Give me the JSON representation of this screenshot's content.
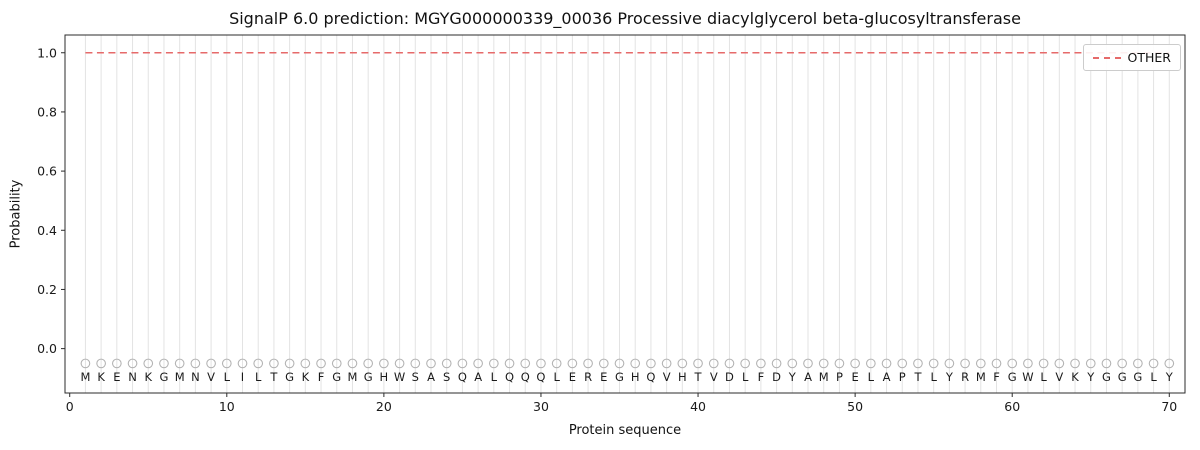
{
  "chart_data": {
    "type": "line",
    "title": "SignalP 6.0 prediction: MGYG000000339_00036 Processive diacylglycerol beta-glucosyltransferase",
    "xlabel": "Protein sequence",
    "ylabel": "Probability",
    "xlim": [
      -0.3,
      71
    ],
    "ylim": [
      -0.15,
      1.06
    ],
    "xticks": [
      0,
      10,
      20,
      30,
      40,
      50,
      60,
      70
    ],
    "yticks": [
      0.0,
      0.2,
      0.4,
      0.6,
      0.8,
      1.0
    ],
    "grid": {
      "vertical_per_residue": true,
      "color": "#e3e3e3"
    },
    "sequence": "MKENKGMNVLILTGKFGMGHWSASQALQQQLEREGHQVHTVDLFDYAMPELAPTLYRMFGWLVKYGGGLY",
    "marker": {
      "glyph": "open-circle",
      "y": -0.05,
      "color": "#b3b3b3"
    },
    "series": [
      {
        "name": "OTHER",
        "style": "dashed",
        "color": "#e66a6a",
        "value": 1.0,
        "x_start": 1,
        "x_end": 70
      }
    ],
    "legend": {
      "position": "upper right",
      "entries": [
        {
          "label": "OTHER",
          "color": "#e66a6a",
          "dash": true
        }
      ]
    }
  }
}
